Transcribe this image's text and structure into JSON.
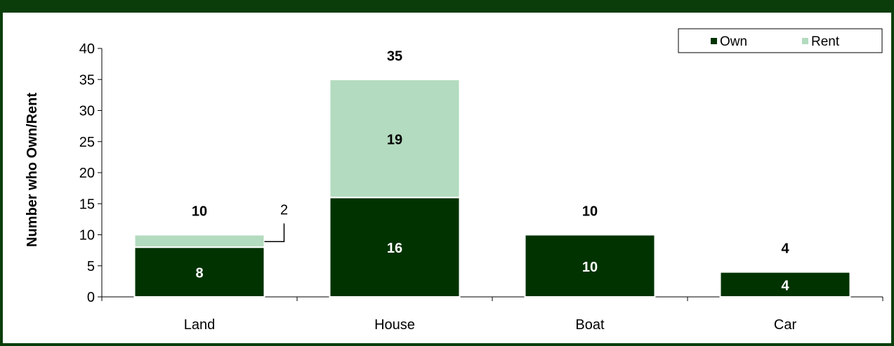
{
  "chart_data": {
    "type": "bar",
    "stacked": true,
    "categories": [
      "Land",
      "House",
      "Boat",
      "Car"
    ],
    "series": [
      {
        "name": "Own",
        "values": [
          8,
          16,
          10,
          4
        ]
      },
      {
        "name": "Rent",
        "values": [
          2,
          19,
          0,
          0
        ]
      }
    ],
    "totals": [
      10,
      35,
      10,
      4
    ],
    "ylabel": "Number who Own/Rent",
    "xlabel": "",
    "ylim": [
      0,
      40
    ],
    "yticks": [
      0,
      5,
      10,
      15,
      20,
      25,
      30,
      35,
      40
    ],
    "grid": false,
    "legend_position": "top-right",
    "colors": {
      "Own": "#003300",
      "Rent": "#b3dbbf",
      "frame": "#0b3d0b"
    },
    "callout": {
      "category": "Land",
      "series": "Rent",
      "label": "2"
    }
  }
}
